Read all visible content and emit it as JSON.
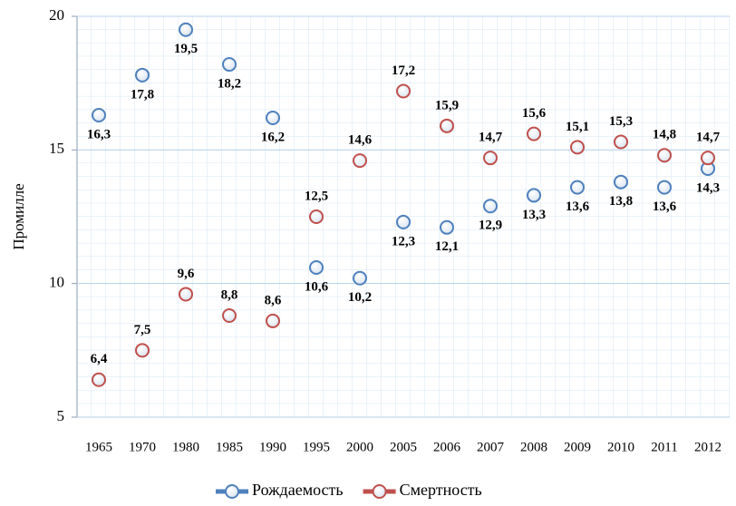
{
  "chart_data": {
    "type": "scatter",
    "y_label": "Промилле",
    "categories": [
      "1965",
      "1970",
      "1980",
      "1985",
      "1990",
      "1995",
      "2000",
      "2005",
      "2006",
      "2007",
      "2008",
      "2009",
      "2010",
      "2011",
      "2012"
    ],
    "series": [
      {
        "name": "Рождаемость",
        "color": "#4f81bd",
        "values": [
          16.3,
          17.8,
          19.5,
          18.2,
          16.2,
          10.6,
          10.2,
          12.3,
          12.1,
          12.9,
          13.3,
          13.6,
          13.8,
          13.6,
          14.3
        ],
        "value_labels": [
          "16,3",
          "17,8",
          "19,5",
          "18,2",
          "16,2",
          "10,6",
          "10,2",
          "12,3",
          "12,1",
          "12,9",
          "13,3",
          "13,6",
          "13,8",
          "13,6",
          "14,3"
        ]
      },
      {
        "name": "Смертность",
        "color": "#c0504d",
        "values": [
          6.4,
          7.5,
          9.6,
          8.8,
          8.6,
          12.5,
          14.6,
          17.2,
          15.9,
          14.7,
          15.6,
          15.1,
          15.3,
          14.8,
          14.7
        ],
        "value_labels": [
          "6,4",
          "7,5",
          "9,6",
          "8,8",
          "8,6",
          "12,5",
          "14,6",
          "17,2",
          "15,9",
          "14,7",
          "15,6",
          "15,1",
          "15,3",
          "14,8",
          "14,7"
        ]
      }
    ],
    "ylim": [
      5,
      20
    ],
    "yticks": [
      5,
      10,
      15,
      20
    ],
    "grid": true,
    "legend": "bottom"
  }
}
